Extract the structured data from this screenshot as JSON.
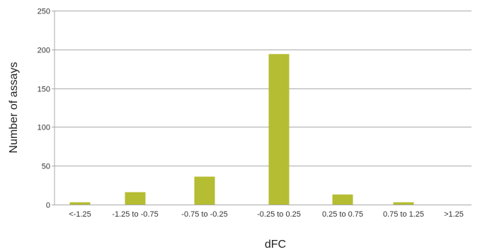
{
  "chart_data": {
    "type": "bar",
    "categories": [
      "<-1.25",
      "-1.25 to -0.75",
      "-0.75 to -0.25",
      "-0.25 to 0.25",
      "0.25 to 0.75",
      "0.75 to 1.25",
      ">1.25"
    ],
    "values": [
      3,
      16,
      36,
      194,
      13,
      3,
      0
    ],
    "xlabel": "dFC",
    "ylabel": "Number of assays",
    "ylim": [
      0,
      250
    ],
    "yticks": [
      0,
      50,
      100,
      150,
      200,
      250
    ],
    "grid": "horizontal",
    "bar_color": "#b5bd32",
    "grid_color": "#aaaaaa"
  }
}
